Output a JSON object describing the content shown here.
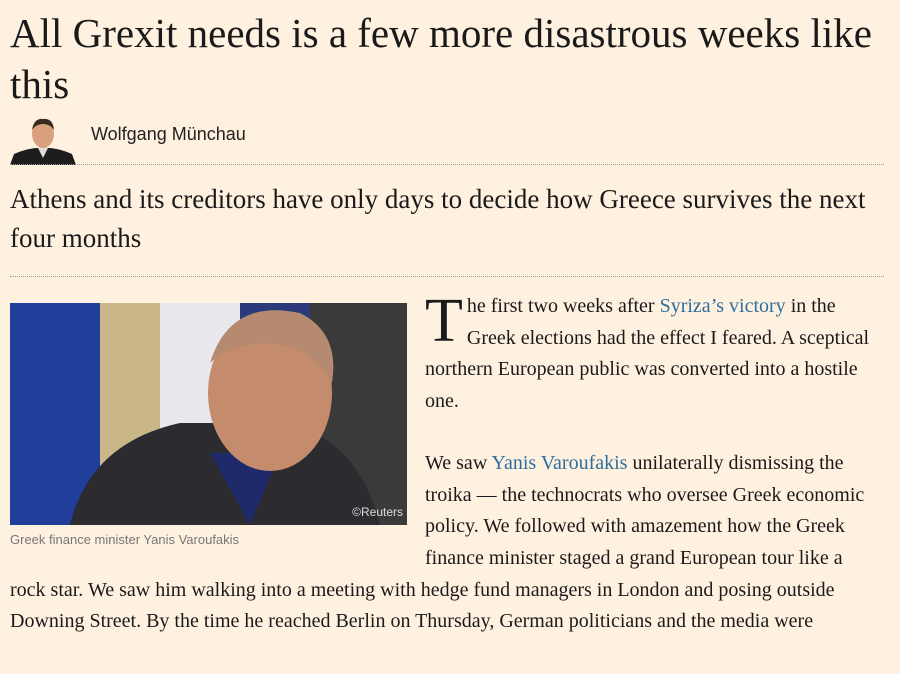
{
  "article": {
    "title": "All Grexit needs is a few more disastrous weeks like this",
    "author": "Wolfgang Münchau",
    "standfirst": "Athens and its creditors have only days to decide how Greece survives the next four months",
    "image": {
      "credit": "©Reuters",
      "caption": "Greek finance minister Yanis Varoufakis"
    },
    "p1": {
      "dropcap": "T",
      "pre": "he first two weeks after ",
      "link": "Syriza’s victory",
      "post": " in the Greek elections had the effect I feared. A sceptical northern European public was converted into a hostile one."
    },
    "p2": {
      "pre": "We saw ",
      "link": "Yanis Varoufakis",
      "post": " unilaterally dismissing the troika — the technocrats who oversee Greek economic policy. We followed with amazement how the Greek finance minister staged a grand European tour like a rock star. We saw him walking into a meeting with hedge fund managers in London and posing outside Downing Street. By the time he reached Berlin on Thursday, German politicians and the media were"
    }
  },
  "colors": {
    "background": "#fff1e0",
    "link": "#2e6e9e"
  }
}
